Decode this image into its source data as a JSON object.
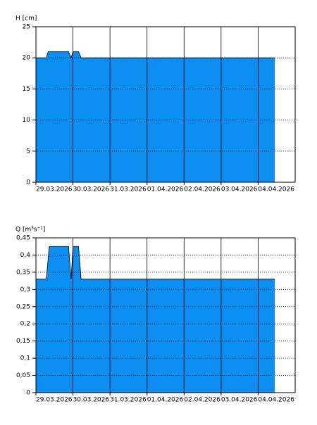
{
  "chart_data": [
    {
      "type": "area",
      "y_label": "H [cm]",
      "color": "#0b8ef0",
      "x": [
        0,
        0.28,
        0.33,
        0.88,
        0.95,
        1.0,
        1.15,
        1.22,
        6.45
      ],
      "values": [
        20,
        20,
        21,
        21,
        20,
        21,
        21,
        20,
        20
      ],
      "xlim": [
        0,
        7
      ],
      "xticks": [
        {
          "value": 0,
          "label": "29.03.2026"
        },
        {
          "value": 1,
          "label": "30.03.2026"
        },
        {
          "value": 2,
          "label": "31.03.2026"
        },
        {
          "value": 3,
          "label": "01.04.2026"
        },
        {
          "value": 4,
          "label": "02.04.2026"
        },
        {
          "value": 5,
          "label": "03.04.2026"
        },
        {
          "value": 6,
          "label": "04.04.2026"
        }
      ],
      "ylim": [
        0,
        25
      ],
      "yticks": [
        0,
        5,
        10,
        15,
        20,
        25
      ],
      "grid": true
    },
    {
      "type": "area",
      "y_label": "Q [m³s⁻¹]",
      "color": "#0b8ef0",
      "x": [
        0,
        0.28,
        0.36,
        0.88,
        0.95,
        1.0,
        1.15,
        1.22,
        6.45
      ],
      "values": [
        0.33,
        0.33,
        0.425,
        0.425,
        0.33,
        0.425,
        0.425,
        0.33,
        0.33
      ],
      "xlim": [
        0,
        7
      ],
      "xticks": [
        {
          "value": 0,
          "label": "29.03.2026"
        },
        {
          "value": 1,
          "label": "30.03.2026"
        },
        {
          "value": 2,
          "label": "31.03.2026"
        },
        {
          "value": 3,
          "label": "01.04.2026"
        },
        {
          "value": 4,
          "label": "02.04.2026"
        },
        {
          "value": 5,
          "label": "03.04.2026"
        },
        {
          "value": 6,
          "label": "04.04.2026"
        }
      ],
      "ylim": [
        0,
        0.45
      ],
      "yticks": [
        0,
        {
          "value": 0.05,
          "label": "0,05"
        },
        {
          "value": 0.1,
          "label": "0,1"
        },
        {
          "value": 0.15,
          "label": "0,15"
        },
        {
          "value": 0.2,
          "label": "0,2"
        },
        {
          "value": 0.25,
          "label": "0,25"
        },
        {
          "value": 0.3,
          "label": "0,3"
        },
        {
          "value": 0.35,
          "label": "0,35"
        },
        {
          "value": 0.4,
          "label": "0,4"
        },
        {
          "value": 0.45,
          "label": "0,45"
        }
      ],
      "grid": true
    }
  ]
}
